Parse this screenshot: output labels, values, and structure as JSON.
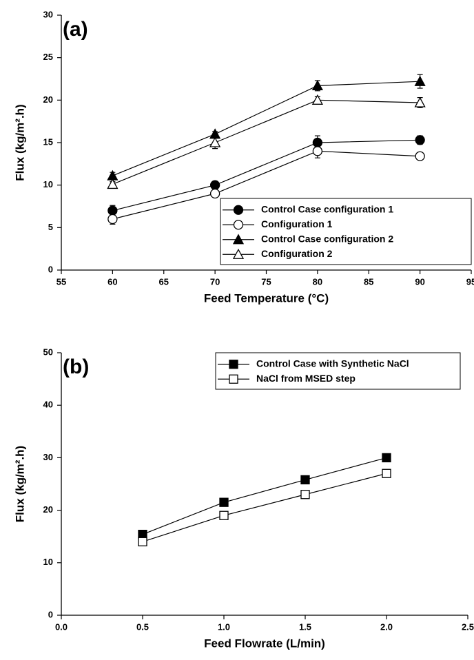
{
  "chart_data": [
    {
      "type": "line",
      "annotation": "(a)",
      "xlabel": "Feed Temperature (°C)",
      "ylabel": "Flux (kg/m².h)",
      "xlim": [
        55,
        95
      ],
      "ylim": [
        0,
        30
      ],
      "xticks": [
        55,
        60,
        65,
        70,
        75,
        80,
        85,
        90,
        95
      ],
      "yticks": [
        0,
        5,
        10,
        15,
        20,
        25,
        30
      ],
      "legend": "lower right",
      "x": [
        60,
        70,
        80,
        90
      ],
      "series": [
        {
          "name": "Control Case configuration 1",
          "color": "#000000",
          "marker": "circle",
          "filled": true,
          "values": [
            7.0,
            10.0,
            15.0,
            15.3
          ],
          "errors": [
            0.6,
            0.3,
            0.8,
            0.5
          ]
        },
        {
          "name": "Configuration 1",
          "color": "#000000",
          "marker": "circle",
          "filled": false,
          "values": [
            6.0,
            9.0,
            14.0,
            13.4
          ],
          "errors": [
            0.6,
            0.3,
            0.8,
            0.3
          ]
        },
        {
          "name": "Control Case configuration 2",
          "color": "#000000",
          "marker": "triangle",
          "filled": true,
          "values": [
            11.1,
            16.0,
            21.7,
            22.2
          ],
          "errors": [
            0.4,
            0.3,
            0.6,
            0.8
          ]
        },
        {
          "name": "Configuration 2",
          "color": "#000000",
          "marker": "triangle",
          "filled": false,
          "values": [
            10.1,
            15.0,
            20.0,
            19.7
          ],
          "errors": [
            0.3,
            0.7,
            0.4,
            0.6
          ]
        }
      ]
    },
    {
      "type": "line",
      "annotation": "(b)",
      "xlabel": "Feed Flowrate (L/min)",
      "ylabel": "Flux (kg/m².h)",
      "xlim": [
        0,
        2.5
      ],
      "ylim": [
        0,
        50
      ],
      "xticks": [
        {
          "value": 0,
          "label": "0.0"
        },
        0.5,
        {
          "value": 1,
          "label": "1.0"
        },
        1.5,
        {
          "value": 2,
          "label": "2.0"
        },
        2.5
      ],
      "yticks": [
        0,
        10,
        20,
        30,
        40,
        50
      ],
      "legend": "upper right",
      "x": [
        0.5,
        1.0,
        1.5,
        2.0
      ],
      "series": [
        {
          "name": "Control Case with Synthetic NaCl",
          "color": "#000000",
          "marker": "square",
          "filled": true,
          "values": [
            15.4,
            21.5,
            25.8,
            30.0
          ]
        },
        {
          "name": "NaCl from MSED step",
          "color": "#000000",
          "marker": "square",
          "filled": false,
          "values": [
            14.0,
            19.0,
            23.0,
            27.0
          ]
        }
      ]
    }
  ]
}
